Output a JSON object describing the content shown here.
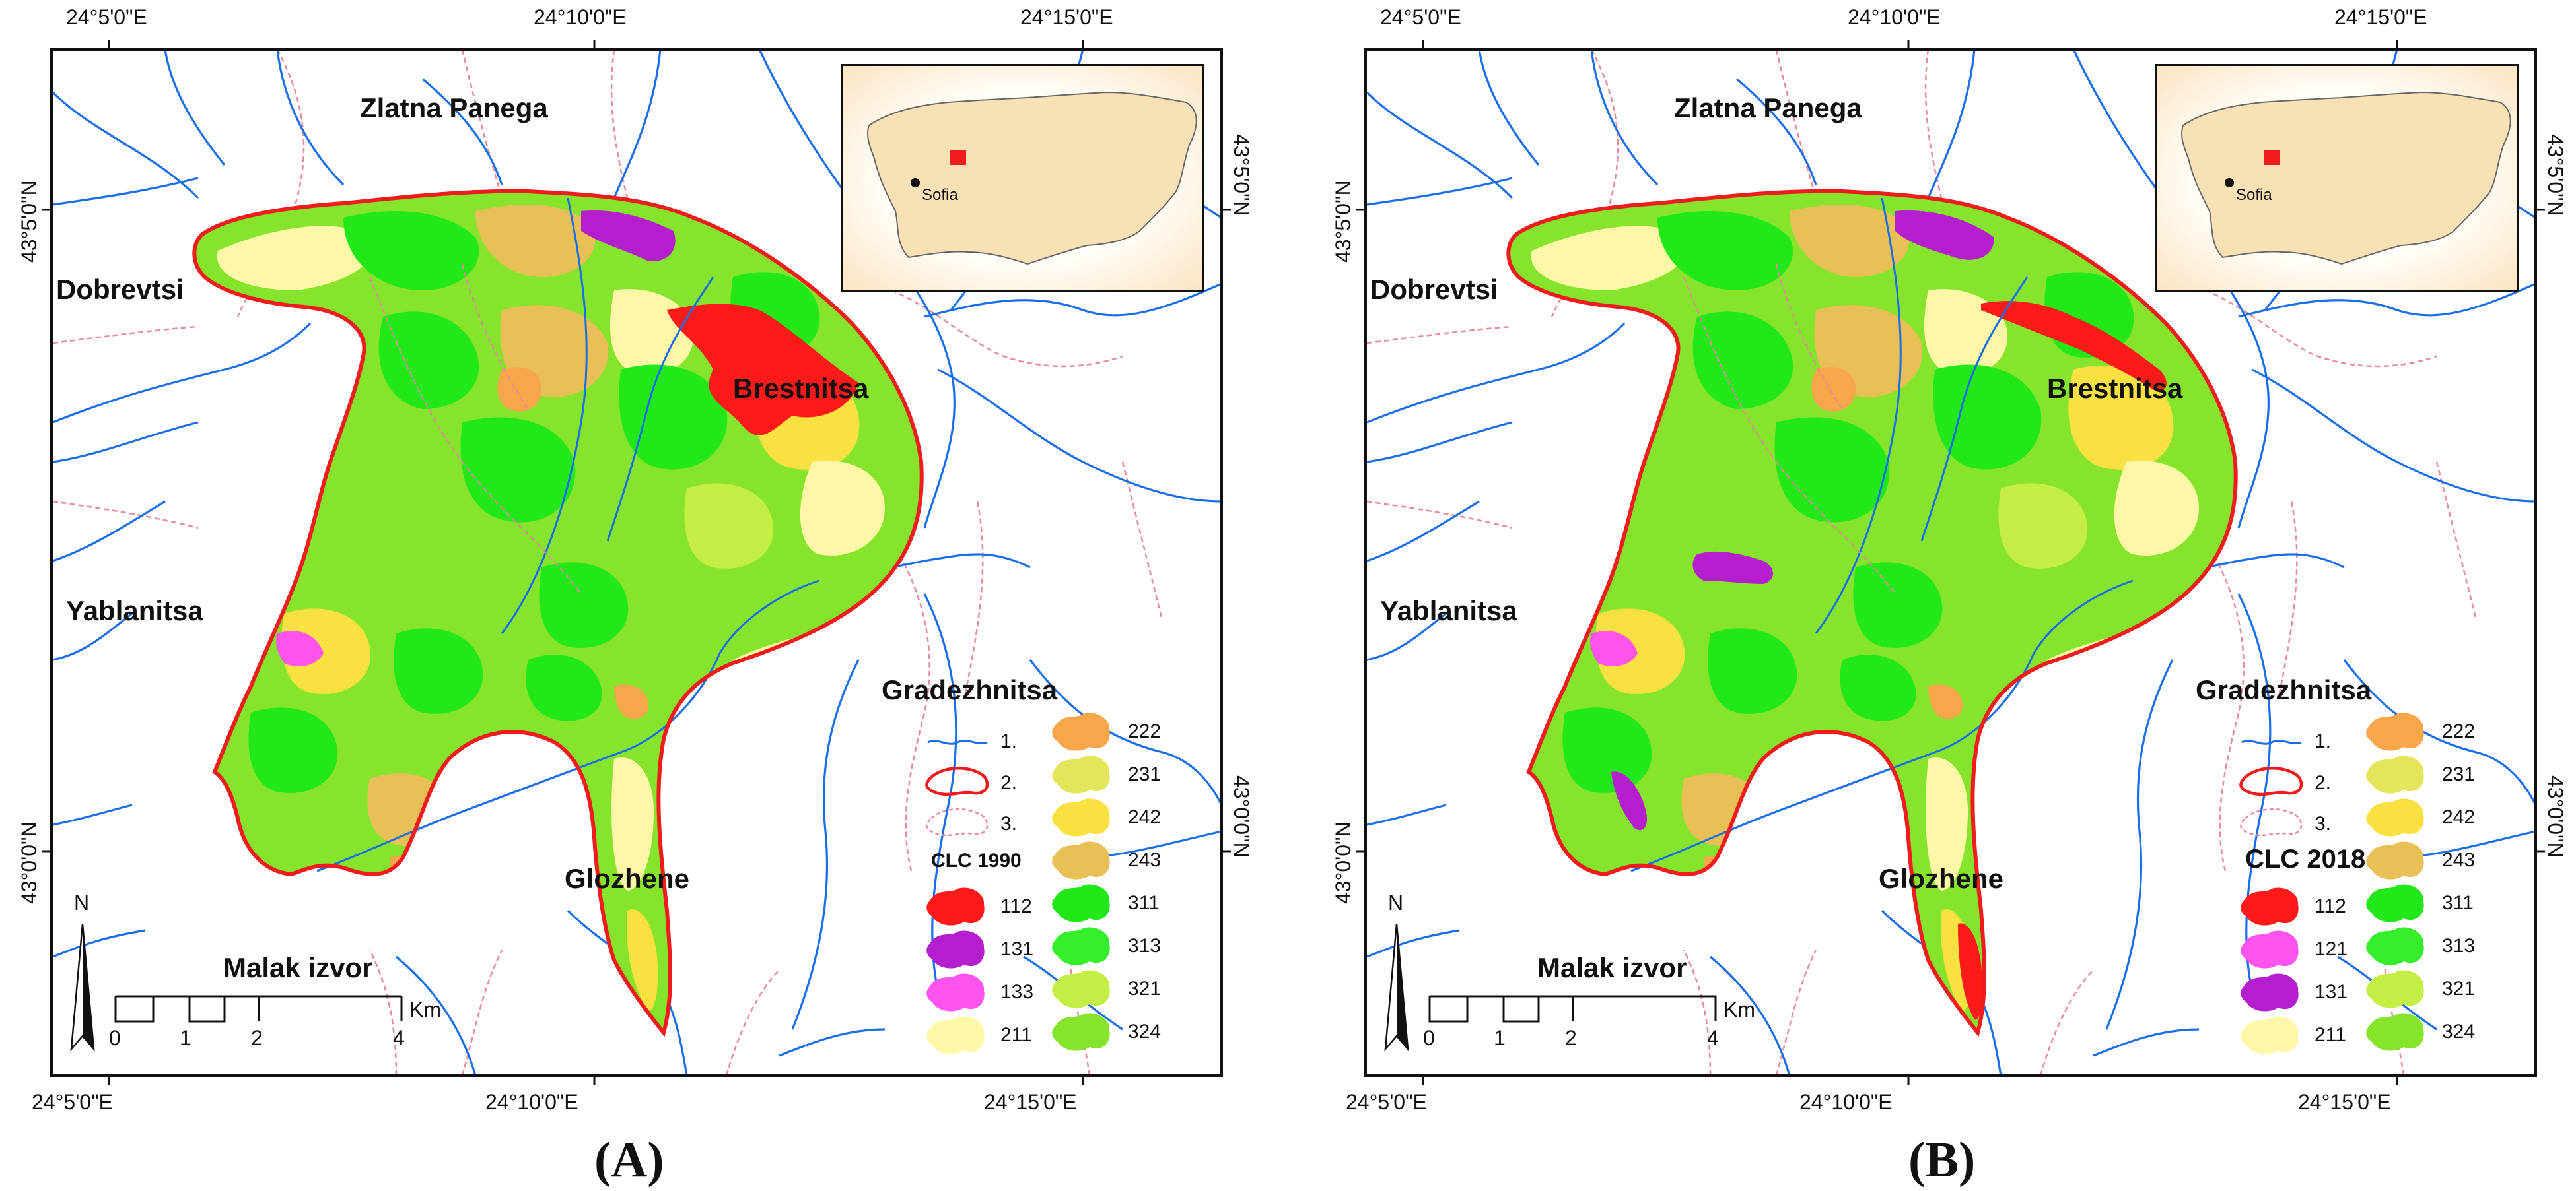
{
  "panels": [
    {
      "caption": "A",
      "coords": {
        "top": [
          "24°5'0\"E",
          "24°10'0\"E",
          "24°15'0\"E"
        ],
        "bottom": [
          "24°5'0\"E",
          "24°10'0\"E",
          "24°15'0\"E"
        ],
        "left": [
          "43°5'0\"N",
          "43°0'0\"N"
        ],
        "right": [
          "43°5'0\"N",
          "43°0'0\"N"
        ]
      },
      "places": {
        "zlatna_panega": "Zlatna Panega",
        "dobrevtsi": "Dobrevtsi",
        "brestnitsa": "Brestnitsa",
        "yablanitsa": "Yablanitsa",
        "gradezhnitsa": "Gradezhnitsa",
        "glozhene": "Glozhene",
        "malak_izvor": "Malak izvor"
      },
      "inset_city": "Sofia",
      "north": "N",
      "scale": {
        "labels": [
          "0",
          "1",
          "2",
          "4"
        ],
        "unit": "Km"
      },
      "legend": {
        "symbols": [
          {
            "label": "1.",
            "kind": "river"
          },
          {
            "label": "2.",
            "kind": "boundary"
          },
          {
            "label": "3.",
            "kind": "admin"
          }
        ],
        "clc_title": "CLC 1990",
        "clc_left": [
          {
            "code": "112",
            "color": "#ff1a1a"
          },
          {
            "code": "131",
            "color": "#b41ecc"
          },
          {
            "code": "133",
            "color": "#ff55ee"
          },
          {
            "code": "211",
            "color": "#fff7a8"
          }
        ],
        "clc_right": [
          {
            "code": "222",
            "color": "#f7a64a"
          },
          {
            "code": "231",
            "color": "#e3e65a"
          },
          {
            "code": "242",
            "color": "#fae142"
          },
          {
            "code": "243",
            "color": "#e8c055"
          },
          {
            "code": "311",
            "color": "#22e81a"
          },
          {
            "code": "313",
            "color": "#35ee2a"
          },
          {
            "code": "321",
            "color": "#c5ee44"
          },
          {
            "code": "324",
            "color": "#86e42c"
          }
        ]
      }
    },
    {
      "caption": "B",
      "coords": {
        "top": [
          "24°5'0\"E",
          "24°10'0\"E",
          "24°15'0\"E"
        ],
        "bottom": [
          "24°5'0\"E",
          "24°10'0\"E",
          "24°15'0\"E"
        ],
        "left": [
          "43°5'0\"N",
          "43°0'0\"N"
        ],
        "right": [
          "43°5'0\"N",
          "43°0'0\"N"
        ]
      },
      "places": {
        "zlatna_panega": "Zlatna Panega",
        "dobrevtsi": "Dobrevtsi",
        "brestnitsa": "Brestnitsa",
        "yablanitsa": "Yablanitsa",
        "gradezhnitsa": "Gradezhnitsa",
        "glozhene": "Glozhene",
        "malak_izvor": "Malak izvor"
      },
      "inset_city": "Sofia",
      "north": "N",
      "scale": {
        "labels": [
          "0",
          "1",
          "2",
          "4"
        ],
        "unit": "Km"
      },
      "legend": {
        "symbols": [
          {
            "label": "1.",
            "kind": "river"
          },
          {
            "label": "2.",
            "kind": "boundary"
          },
          {
            "label": "3.",
            "kind": "admin"
          }
        ],
        "clc_title": "CLC 2018",
        "clc_left": [
          {
            "code": "112",
            "color": "#ff1a1a"
          },
          {
            "code": "121",
            "color": "#ff55ee"
          },
          {
            "code": "131",
            "color": "#b41ecc"
          },
          {
            "code": "211",
            "color": "#fff7a8"
          }
        ],
        "clc_right": [
          {
            "code": "222",
            "color": "#f7a64a"
          },
          {
            "code": "231",
            "color": "#e3e65a"
          },
          {
            "code": "242",
            "color": "#fae142"
          },
          {
            "code": "243",
            "color": "#e8c055"
          },
          {
            "code": "311",
            "color": "#22e81a"
          },
          {
            "code": "313",
            "color": "#35ee2a"
          },
          {
            "code": "321",
            "color": "#c5ee44"
          },
          {
            "code": "324",
            "color": "#86e42c"
          }
        ]
      }
    }
  ],
  "colors": {
    "river": "#1a6ee8",
    "boundary": "#ee1c1c",
    "admin": "#e88a9a",
    "frame": "#111111",
    "inset_country": "#f7e1b5"
  }
}
